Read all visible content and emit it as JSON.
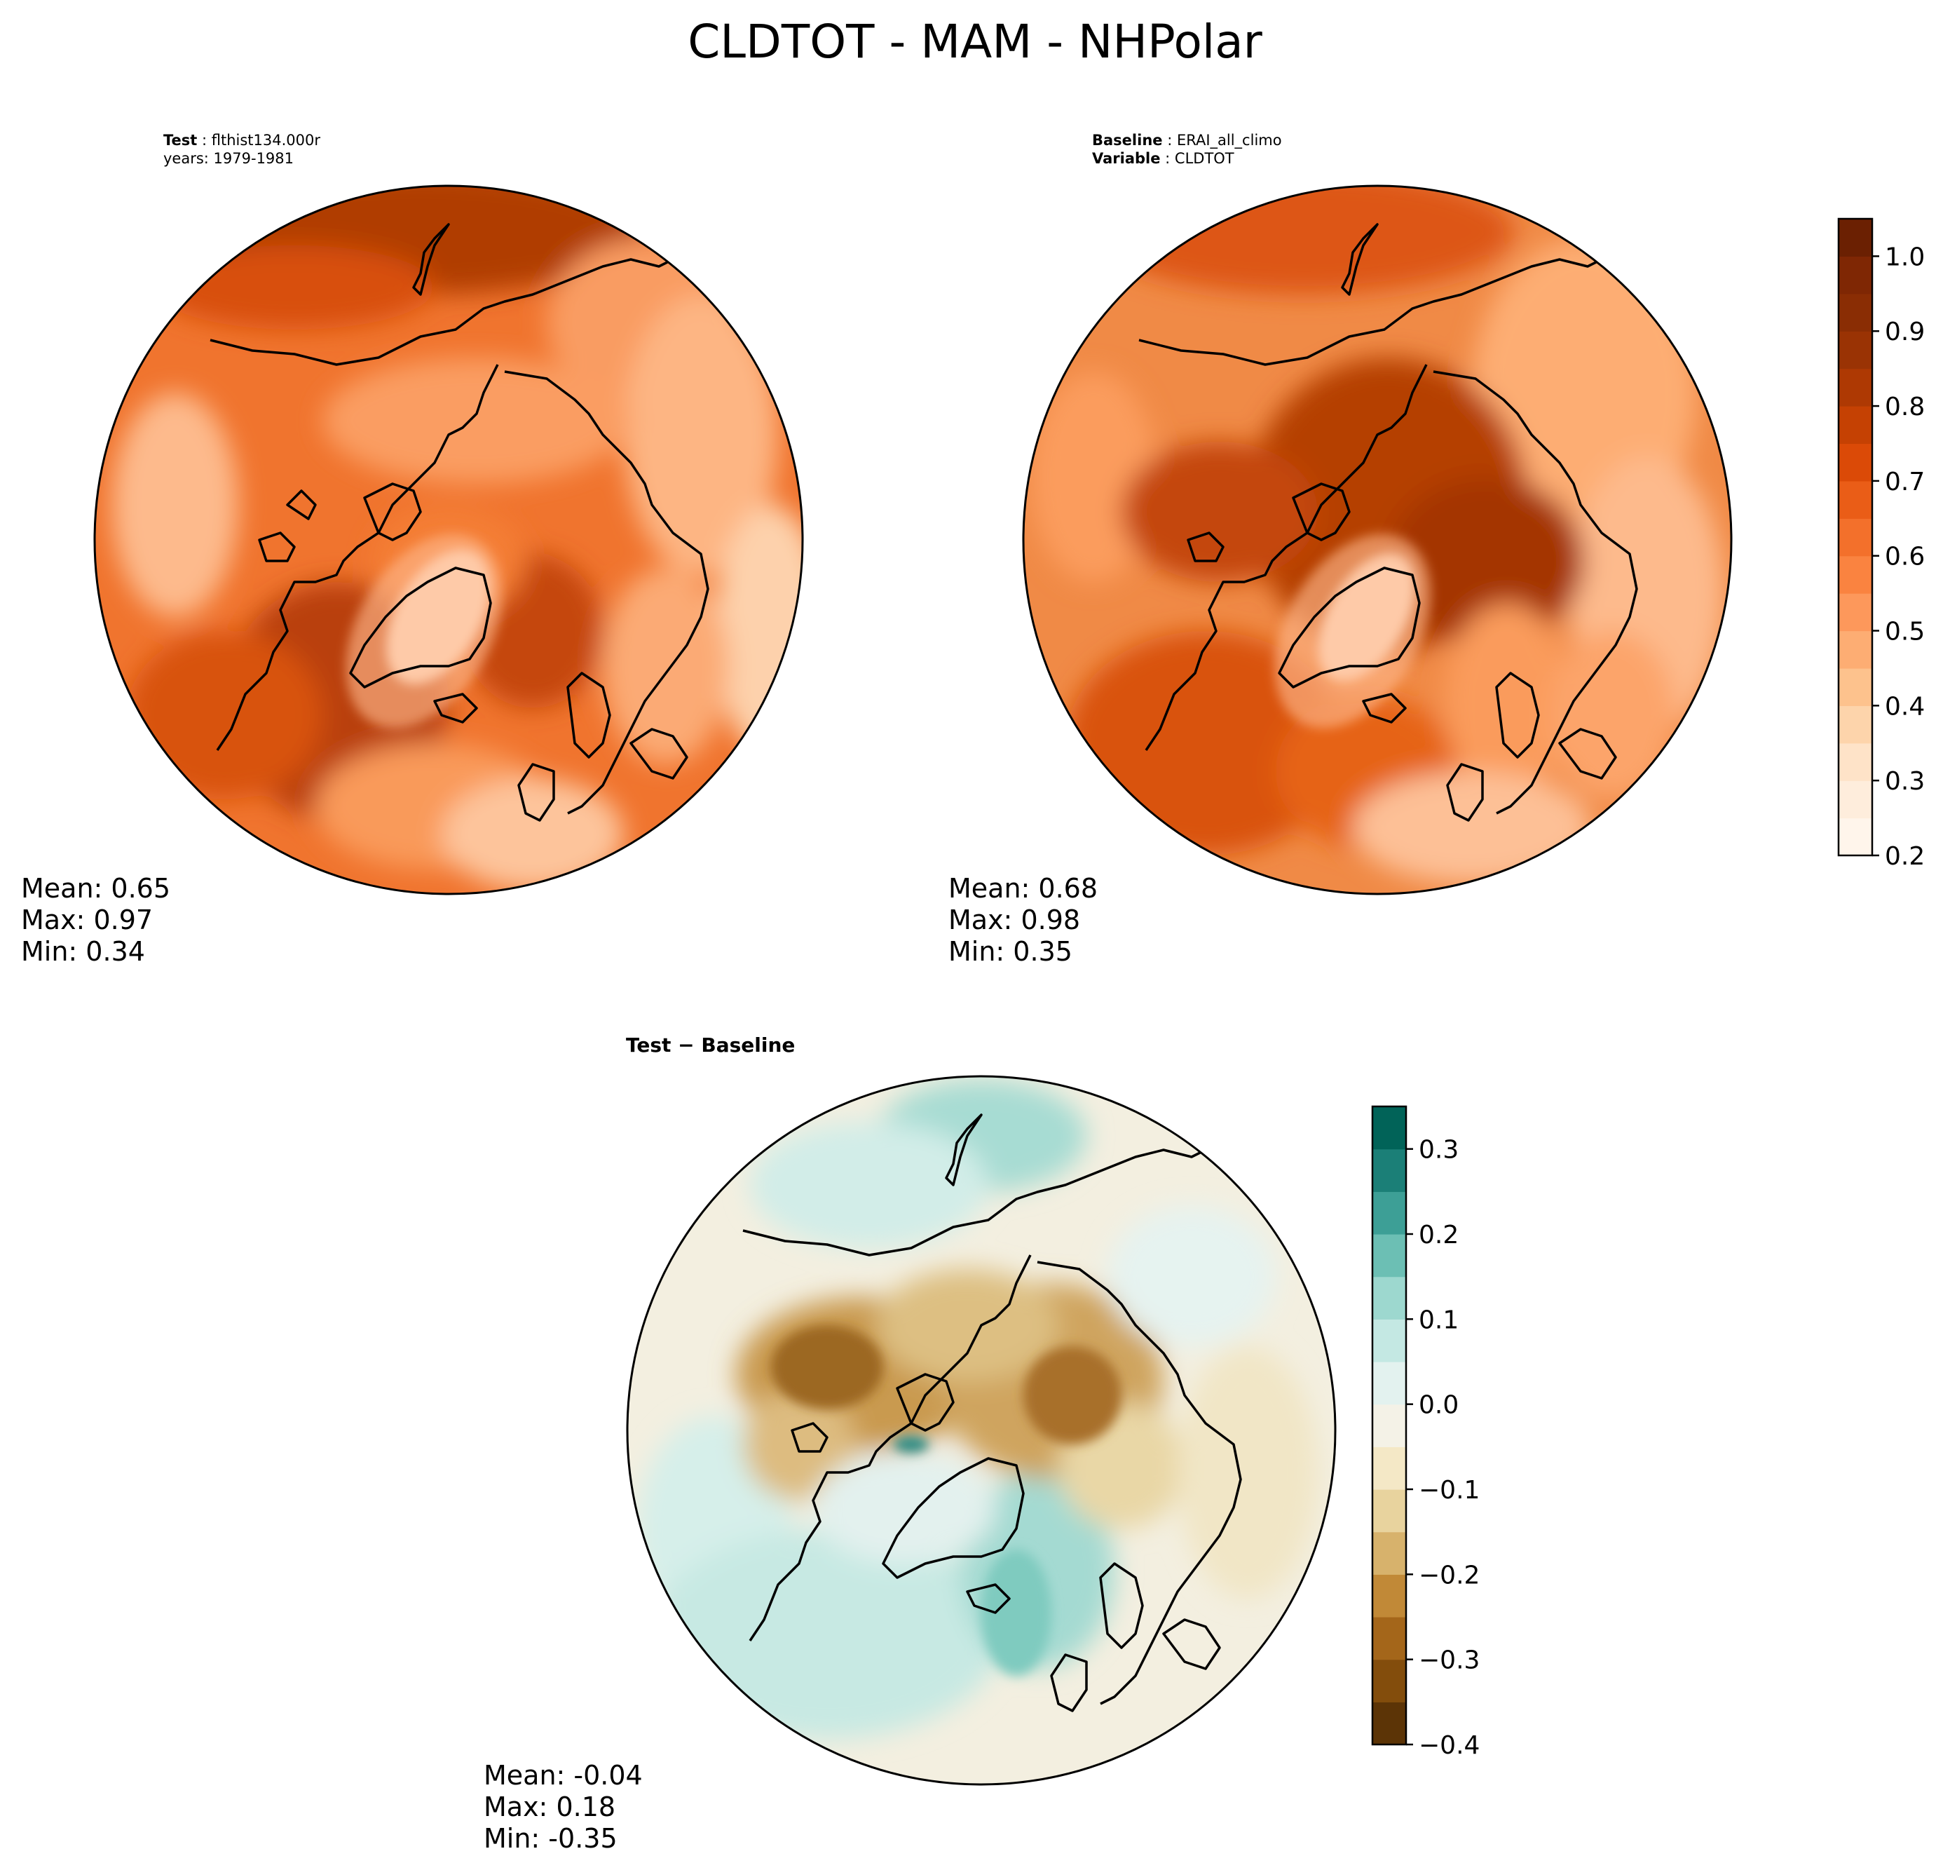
{
  "title": "CLDTOT - MAM - NHPolar",
  "panels": [
    {
      "id": "test",
      "header": [
        {
          "label": "Test",
          "value": "flthist134.000r"
        },
        {
          "label": "",
          "value": "years: 1979-1981"
        }
      ],
      "stats": {
        "mean": "Mean:  0.65",
        "max": "Max:  0.97",
        "min": "Min:  0.34"
      }
    },
    {
      "id": "baseline",
      "header": [
        {
          "label": "Baseline",
          "value": "ERAI_all_climo"
        },
        {
          "label": "Variable",
          "value": "CLDTOT"
        }
      ],
      "stats": {
        "mean": "Mean:  0.68",
        "max": "Max:  0.98",
        "min": "Min:  0.35"
      }
    },
    {
      "id": "difference",
      "header": [
        {
          "label": "Test − Baseline",
          "value": ""
        }
      ],
      "stats": {
        "mean": "Mean: -0.04",
        "max": "Max:  0.18",
        "min": "Min: -0.35"
      }
    }
  ],
  "chart_data": [
    {
      "type": "heatmap",
      "projection": "north polar stereographic",
      "title": "Test: flthist134.000r, years: 1979-1981",
      "mean": 0.65,
      "max": 0.97,
      "min": 0.34,
      "colorscale": "Oranges",
      "levels": [
        0.2,
        0.25,
        0.3,
        0.35,
        0.4,
        0.45,
        0.5,
        0.55,
        0.6,
        0.65,
        0.7,
        0.75,
        0.8,
        0.85,
        0.9,
        0.95,
        1.0,
        1.05
      ]
    },
    {
      "type": "heatmap",
      "projection": "north polar stereographic",
      "title": "Baseline: ERAI_all_climo, Variable: CLDTOT",
      "mean": 0.68,
      "max": 0.98,
      "min": 0.35,
      "colorscale": "Oranges",
      "levels": [
        0.2,
        0.25,
        0.3,
        0.35,
        0.4,
        0.45,
        0.5,
        0.55,
        0.6,
        0.65,
        0.7,
        0.75,
        0.8,
        0.85,
        0.9,
        0.95,
        1.0,
        1.05
      ],
      "colorbar": {
        "ticks": [
          "0.2",
          "0.3",
          "0.4",
          "0.5",
          "0.6",
          "0.7",
          "0.8",
          "0.9",
          "1.0"
        ],
        "tick_values": [
          0.2,
          0.3,
          0.4,
          0.5,
          0.6,
          0.7,
          0.8,
          0.9,
          1.0
        ],
        "range": [
          0.2,
          1.05
        ],
        "colors": [
          "#fff5eb",
          "#feeddc",
          "#fee3c8",
          "#fdd4ab",
          "#fdc28d",
          "#fdad73",
          "#fd985b",
          "#fa8340",
          "#f3702b",
          "#ea5d17",
          "#db4a07",
          "#c54103",
          "#ae3903",
          "#9a3304",
          "#8a2d04",
          "#7f2704",
          "#6b2002"
        ]
      }
    },
    {
      "type": "heatmap",
      "projection": "north polar stereographic",
      "title": "Test - Baseline",
      "mean": -0.04,
      "max": 0.18,
      "min": -0.35,
      "colorscale": "BrBG",
      "colorbar": {
        "ticks": [
          "−0.4",
          "−0.3",
          "−0.2",
          "−0.1",
          "0.0",
          "0.1",
          "0.2",
          "0.3"
        ],
        "tick_values": [
          -0.4,
          -0.3,
          -0.2,
          -0.1,
          0.0,
          0.1,
          0.2,
          0.3
        ],
        "range": [
          -0.4,
          0.35
        ],
        "colors": [
          "#5c3406",
          "#834d0c",
          "#a4661a",
          "#c18937",
          "#d7b26c",
          "#e8d39e",
          "#f4e8c6",
          "#f4f2e7",
          "#e3f2ef",
          "#c4e8e3",
          "#9dd8cf",
          "#6cbfb4",
          "#3d9f96",
          "#1b7f77",
          "#016358"
        ]
      }
    }
  ],
  "colors": {
    "land_outline": "#000000",
    "background": "#ffffff"
  }
}
